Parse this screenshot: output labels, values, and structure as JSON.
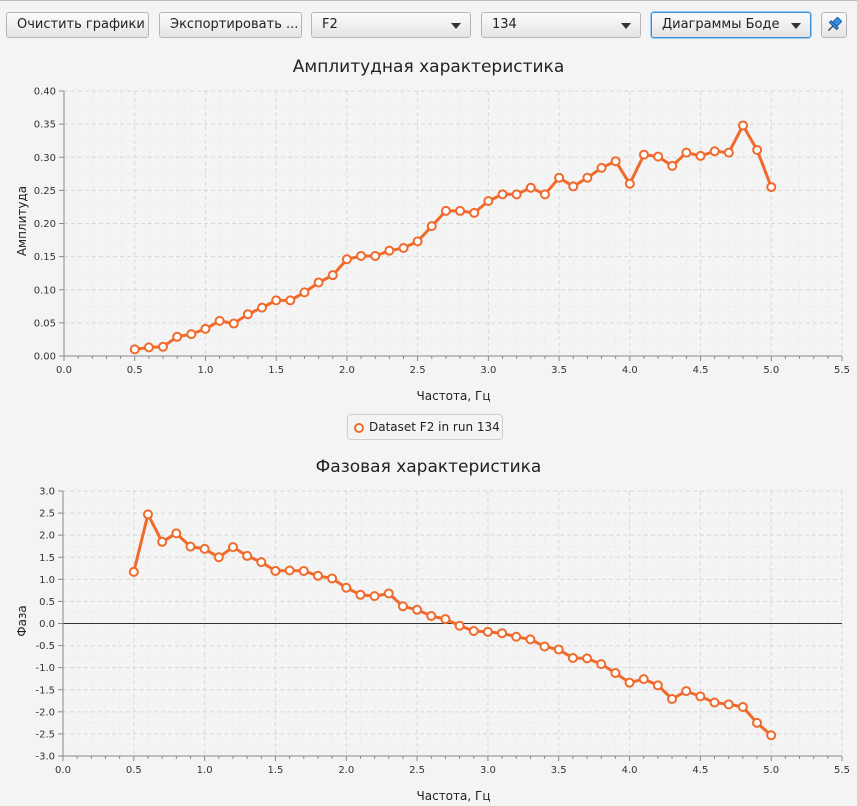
{
  "toolbar": {
    "clear_label": "Очистить графики",
    "export_label": "Экспортировать ...",
    "signal_value": "F2",
    "run_value": "134",
    "view_value": "Диаграммы Боде",
    "pin_icon": "pin-icon"
  },
  "legend": {
    "label": "Dataset F2 in run 134",
    "color": "#f06a2c"
  },
  "chart_data": [
    {
      "type": "line",
      "title": "Амплитудная характеристика",
      "xlabel": "Частота, Гц",
      "ylabel": "Амплитуда",
      "xlim": [
        0.0,
        5.5
      ],
      "ylim": [
        0.0,
        0.4
      ],
      "xticks": [
        "0.0",
        "0.5",
        "1.0",
        "1.5",
        "2.0",
        "2.5",
        "3.0",
        "3.5",
        "4.0",
        "4.5",
        "5.0",
        "5.5"
      ],
      "yticks": [
        "0.00",
        "0.05",
        "0.10",
        "0.15",
        "0.20",
        "0.25",
        "0.30",
        "0.35",
        "0.40"
      ],
      "grid": true,
      "series": [
        {
          "name": "Dataset F2 in run 134",
          "x": [
            0.5,
            0.6,
            0.7,
            0.8,
            0.9,
            1.0,
            1.1,
            1.2,
            1.3,
            1.4,
            1.5,
            1.6,
            1.7,
            1.8,
            1.9,
            2.0,
            2.1,
            2.2,
            2.3,
            2.4,
            2.5,
            2.6,
            2.7,
            2.8,
            2.9,
            3.0,
            3.1,
            3.2,
            3.3,
            3.4,
            3.5,
            3.6,
            3.7,
            3.8,
            3.9,
            4.0,
            4.1,
            4.2,
            4.3,
            4.4,
            4.5,
            4.6,
            4.7,
            4.8,
            4.9,
            5.0
          ],
          "y": [
            0.01,
            0.013,
            0.014,
            0.029,
            0.033,
            0.041,
            0.053,
            0.049,
            0.063,
            0.073,
            0.084,
            0.084,
            0.096,
            0.111,
            0.122,
            0.146,
            0.151,
            0.151,
            0.159,
            0.163,
            0.173,
            0.196,
            0.219,
            0.219,
            0.216,
            0.234,
            0.244,
            0.244,
            0.254,
            0.244,
            0.269,
            0.256,
            0.269,
            0.284,
            0.294,
            0.26,
            0.304,
            0.301,
            0.287,
            0.307,
            0.302,
            0.309,
            0.307,
            0.348,
            0.311,
            0.255
          ]
        }
      ]
    },
    {
      "type": "line",
      "title": "Фазовая характеристика",
      "xlabel": "Частота, Гц",
      "ylabel": "Фаза",
      "xlim": [
        0.0,
        5.5
      ],
      "ylim": [
        -3.0,
        3.0
      ],
      "xticks": [
        "0.0",
        "0.5",
        "1.0",
        "1.5",
        "2.0",
        "2.5",
        "3.0",
        "3.5",
        "4.0",
        "4.5",
        "5.0",
        "5.5"
      ],
      "yticks": [
        "3.0",
        "2.5",
        "2.0",
        "1.5",
        "1.0",
        "0.5",
        "0.0",
        "-0.5",
        "-1.0",
        "-1.5",
        "-2.0",
        "-2.5",
        "-3.0"
      ],
      "grid": true,
      "series": [
        {
          "name": "Dataset F2 in run 134",
          "x": [
            0.5,
            0.6,
            0.7,
            0.8,
            0.9,
            1.0,
            1.1,
            1.2,
            1.3,
            1.4,
            1.5,
            1.6,
            1.7,
            1.8,
            1.9,
            2.0,
            2.1,
            2.2,
            2.3,
            2.4,
            2.5,
            2.6,
            2.7,
            2.8,
            2.9,
            3.0,
            3.1,
            3.2,
            3.3,
            3.4,
            3.5,
            3.6,
            3.7,
            3.8,
            3.9,
            4.0,
            4.1,
            4.2,
            4.3,
            4.4,
            4.5,
            4.6,
            4.7,
            4.8,
            4.9,
            5.0
          ],
          "y": [
            1.17,
            2.47,
            1.85,
            2.04,
            1.74,
            1.69,
            1.5,
            1.73,
            1.53,
            1.39,
            1.19,
            1.2,
            1.19,
            1.08,
            1.02,
            0.81,
            0.65,
            0.62,
            0.68,
            0.39,
            0.31,
            0.17,
            0.1,
            -0.05,
            -0.17,
            -0.19,
            -0.22,
            -0.3,
            -0.36,
            -0.52,
            -0.59,
            -0.78,
            -0.79,
            -0.92,
            -1.12,
            -1.34,
            -1.26,
            -1.4,
            -1.71,
            -1.53,
            -1.65,
            -1.79,
            -1.83,
            -1.89,
            -2.25,
            -2.53
          ]
        }
      ]
    }
  ]
}
